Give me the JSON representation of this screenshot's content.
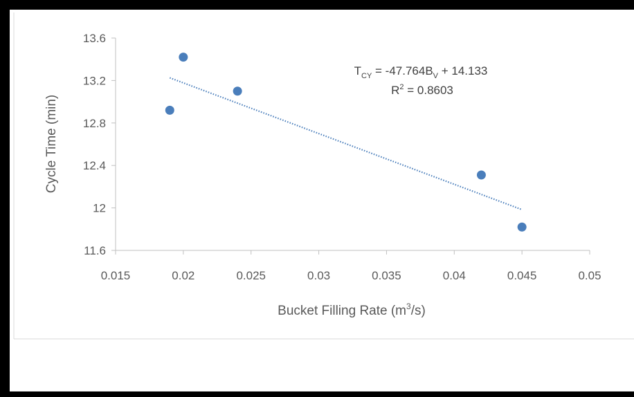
{
  "chart_data": {
    "type": "scatter",
    "title": "",
    "xlabel": "Bucket Filling Rate (m",
    "xlabel_sup": "3",
    "xlabel_tail": "/s)",
    "ylabel": "Cycle Time (min)",
    "xlim": [
      0.015,
      0.05
    ],
    "ylim": [
      11.6,
      13.6
    ],
    "x_ticks": [
      {
        "value": 0.015,
        "label": "0.015"
      },
      {
        "value": 0.02,
        "label": "0.02"
      },
      {
        "value": 0.025,
        "label": "0.025"
      },
      {
        "value": 0.03,
        "label": "0.03"
      },
      {
        "value": 0.035,
        "label": "0.035"
      },
      {
        "value": 0.04,
        "label": "0.04"
      },
      {
        "value": 0.045,
        "label": "0.045"
      },
      {
        "value": 0.05,
        "label": "0.05"
      }
    ],
    "y_ticks": [
      {
        "value": 11.6,
        "label": "11.6"
      },
      {
        "value": 12,
        "label": "12"
      },
      {
        "value": 12.4,
        "label": "12.4"
      },
      {
        "value": 12.8,
        "label": "12.8"
      },
      {
        "value": 13.2,
        "label": "13.2"
      },
      {
        "value": 13.6,
        "label": "13.6"
      }
    ],
    "series": [
      {
        "color": "#4a7ebb",
        "points": [
          {
            "x": 0.019,
            "y": 12.92
          },
          {
            "x": 0.02,
            "y": 13.42
          },
          {
            "x": 0.024,
            "y": 13.1
          },
          {
            "x": 0.042,
            "y": 12.31
          },
          {
            "x": 0.045,
            "y": 11.82
          }
        ]
      }
    ],
    "trendline": {
      "type": "linear",
      "slope": -47.764,
      "intercept": 14.133,
      "x_range": [
        0.019,
        0.045
      ],
      "color": "#4a7ebb",
      "style": "dotted",
      "equation": {
        "t": "T",
        "t_sub": "CY",
        "mid": " = -47.764B",
        "b_sub": "V",
        "tail": " + 14.133"
      },
      "r2": {
        "r": "R",
        "r_sup": "2",
        "tail": " = 0.8603"
      }
    },
    "grid": false,
    "legend": "none"
  },
  "colors": {
    "axis": "#bfbfbf",
    "frame": "#000000"
  }
}
